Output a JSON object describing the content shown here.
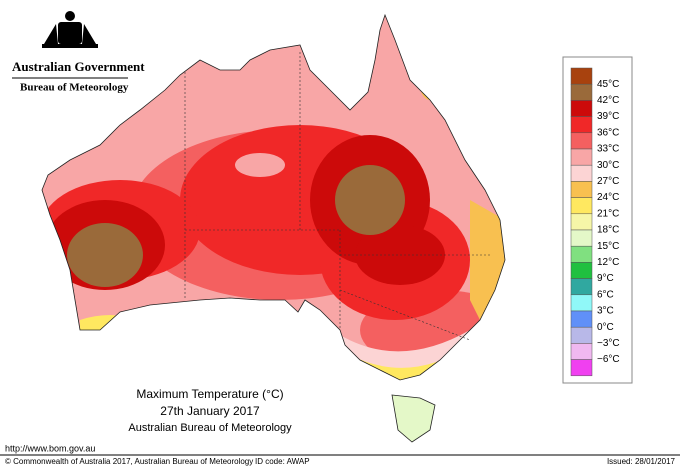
{
  "header": {
    "government": "Australian Government",
    "bureau": "Bureau of Meteorology"
  },
  "legend": {
    "colors": [
      "#a8420e",
      "#9a6a3a",
      "#cc0a0a",
      "#f02828",
      "#f46060",
      "#f8a6a6",
      "#fcd4d4",
      "#f8c050",
      "#ffe860",
      "#f6f6a8",
      "#e4f8c8",
      "#80e080",
      "#20c040",
      "#30a8a0",
      "#90f8f8",
      "#6090f8",
      "#b8b8e8",
      "#f0b8f0",
      "#f040f0",
      "#9800a0"
    ],
    "labels": [
      "45°C",
      "42°C",
      "39°C",
      "36°C",
      "33°C",
      "30°C",
      "27°C",
      "24°C",
      "21°C",
      "18°C",
      "15°C",
      "12°C",
      "9°C",
      "6°C",
      "3°C",
      "0°C",
      "−3°C",
      "−6°C"
    ]
  },
  "caption": {
    "title": "Maximum Temperature (°C)",
    "date": "27th January 2017",
    "agency": "Australian Bureau of Meteorology"
  },
  "url": "http://www.bom.gov.au",
  "footer": {
    "copyright": "© Commonwealth of Australia 2017, Australian Bureau of Meteorology",
    "id_code": "ID code: AWAP",
    "issued": "Issued: 28/01/2017"
  }
}
